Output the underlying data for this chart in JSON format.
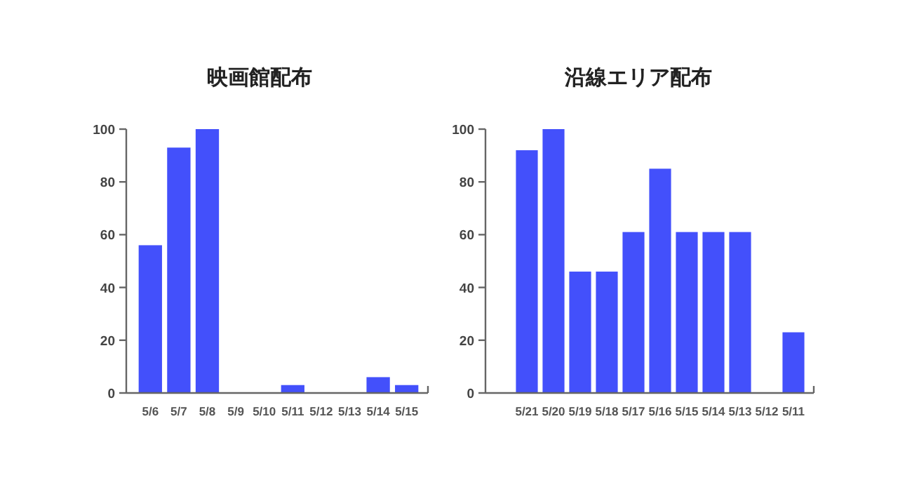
{
  "chart_data": [
    {
      "type": "bar",
      "title": "映画館配布",
      "categories": [
        "5/6",
        "5/7",
        "5/8",
        "5/9",
        "5/10",
        "5/11",
        "5/12",
        "5/13",
        "5/14",
        "5/15"
      ],
      "color": "#4350fb",
      "values": [
        56,
        93,
        100,
        0,
        0,
        3,
        0,
        0,
        6,
        3
      ],
      "ylim": [
        0,
        100
      ],
      "yticks": [
        0,
        20,
        40,
        60,
        80,
        100
      ],
      "grid": false
    },
    {
      "type": "bar",
      "title": "沿線エリア配布",
      "categories": [
        "5/21",
        "5/20",
        "5/19",
        "5/18",
        "5/17",
        "5/16",
        "5/15",
        "5/14",
        "5/13",
        "5/12",
        "5/11"
      ],
      "color": "#4350fb",
      "values": [
        92,
        100,
        46,
        46,
        61,
        85,
        61,
        61,
        61,
        0,
        23
      ],
      "ylim": [
        0,
        100
      ],
      "yticks": [
        0,
        20,
        40,
        60,
        80,
        100
      ],
      "grid": false
    }
  ]
}
